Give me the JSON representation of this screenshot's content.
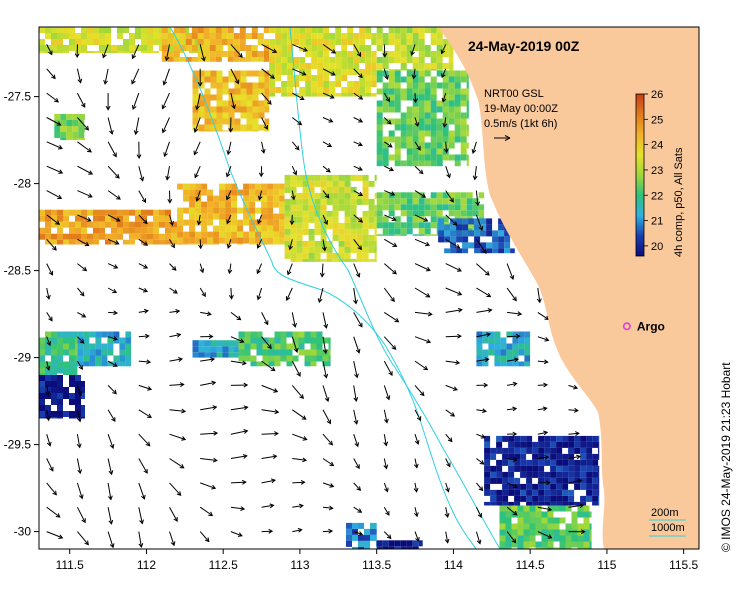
{
  "title": "24-May-2019 00Z",
  "info": {
    "line1": "NRT00 GSL",
    "line2": "19-May 00:00Z",
    "line3": "0.5m/s (1kt 6h)"
  },
  "colorbar": {
    "label": "4h comp, p50, All Sats",
    "ticks": [
      "20",
      "21",
      "22",
      "23",
      "24",
      "25",
      "26"
    ],
    "min": 19.6,
    "max": 26,
    "colors": [
      "#0a0c7a",
      "#1a3fb0",
      "#2fb0e0",
      "#2ec27a",
      "#9fd83a",
      "#e6e22a",
      "#f2b02a",
      "#e07a1a",
      "#c8401a"
    ]
  },
  "argo": {
    "label": "Argo",
    "lon": 115.13,
    "lat": -28.82,
    "color": "#e040e0"
  },
  "isobaths": {
    "label_200": "200m",
    "label_1000": "1000m",
    "color": "#30d0e0"
  },
  "credit": "© IMOS 24-May-2019 21:23 Hobart",
  "axes": {
    "x_ticks": [
      "111.5",
      "112",
      "112.5",
      "113",
      "113.5",
      "114",
      "114.5",
      "115",
      "115.5"
    ],
    "y_ticks": [
      "-27.5",
      "-28",
      "-28.5",
      "-29",
      "-29.5",
      "-30"
    ],
    "xlim": [
      111.3,
      115.6
    ],
    "ylim": [
      -30.1,
      -27.1
    ]
  },
  "land_color": "#f9c89b",
  "chart_data": {
    "type": "heatmap",
    "title": "24-May-2019 00Z",
    "xlabel": "",
    "ylabel": "",
    "x_ticks": [
      "111.5",
      "112",
      "112.5",
      "113",
      "113.5",
      "114",
      "114.5",
      "115",
      "115.5"
    ],
    "y_ticks": [
      "-27.5",
      "-28",
      "-28.5",
      "-29",
      "-29.5",
      "-30"
    ],
    "xlim": [
      111.3,
      115.6
    ],
    "ylim": [
      -30.1,
      -27.1
    ],
    "value_range": [
      19.6,
      26
    ],
    "sst_patches": [
      {
        "lon0": 111.3,
        "lon1": 112.5,
        "lat0": -27.25,
        "lat1": -27.1,
        "value": 23.4
      },
      {
        "lon0": 112.1,
        "lon1": 112.8,
        "lat0": -27.3,
        "lat1": -27.1,
        "value": 24.4
      },
      {
        "lon0": 112.8,
        "lon1": 113.5,
        "lat0": -27.5,
        "lat1": -27.1,
        "value": 23.5
      },
      {
        "lon0": 113.5,
        "lon1": 114.0,
        "lat0": -27.35,
        "lat1": -27.1,
        "value": 23.2
      },
      {
        "lon0": 113.5,
        "lon1": 114.1,
        "lat0": -27.9,
        "lat1": -27.35,
        "value": 22.4
      },
      {
        "lon0": 112.3,
        "lon1": 112.8,
        "lat0": -27.7,
        "lat1": -27.35,
        "value": 24.2
      },
      {
        "lon0": 111.4,
        "lon1": 111.6,
        "lat0": -27.75,
        "lat1": -27.6,
        "value": 22.5
      },
      {
        "lon0": 111.3,
        "lon1": 112.2,
        "lat0": -28.35,
        "lat1": -28.15,
        "value": 24.6
      },
      {
        "lon0": 112.2,
        "lon1": 112.9,
        "lat0": -28.35,
        "lat1": -28.0,
        "value": 24.3
      },
      {
        "lon0": 112.9,
        "lon1": 113.5,
        "lat0": -28.45,
        "lat1": -27.95,
        "value": 23.3
      },
      {
        "lon0": 113.5,
        "lon1": 114.2,
        "lat0": -28.3,
        "lat1": -28.05,
        "value": 22.3
      },
      {
        "lon0": 113.9,
        "lon1": 114.4,
        "lat0": -28.4,
        "lat1": -28.2,
        "value": 20.6
      },
      {
        "lon0": 111.3,
        "lon1": 111.55,
        "lat0": -29.1,
        "lat1": -28.85,
        "value": 22.0
      },
      {
        "lon0": 111.55,
        "lon1": 111.9,
        "lat0": -29.05,
        "lat1": -28.85,
        "value": 21.3
      },
      {
        "lon0": 111.3,
        "lon1": 111.6,
        "lat0": -29.35,
        "lat1": -29.1,
        "value": 19.9
      },
      {
        "lon0": 112.3,
        "lon1": 112.6,
        "lat0": -29.0,
        "lat1": -28.9,
        "value": 21.3
      },
      {
        "lon0": 112.6,
        "lon1": 113.2,
        "lat0": -29.05,
        "lat1": -28.85,
        "value": 22.2
      },
      {
        "lon0": 114.15,
        "lon1": 114.5,
        "lat0": -29.05,
        "lat1": -28.85,
        "value": 21.3
      },
      {
        "lon0": 114.2,
        "lon1": 114.95,
        "lat0": -29.85,
        "lat1": -29.45,
        "value": 20.0
      },
      {
        "lon0": 114.3,
        "lon1": 114.9,
        "lat0": -30.1,
        "lat1": -29.85,
        "value": 22.3
      },
      {
        "lon0": 113.3,
        "lon1": 113.5,
        "lat0": -30.1,
        "lat1": -29.95,
        "value": 20.8
      },
      {
        "lon0": 113.5,
        "lon1": 113.8,
        "lat0": -30.1,
        "lat1": -30.05,
        "value": 19.9
      }
    ],
    "current_vectors": "0.5 m/s reference arrow; field of surface current arrows over the ocean area",
    "markers": [
      {
        "label": "Argo",
        "lon": 115.13,
        "lat": -28.82
      }
    ]
  }
}
